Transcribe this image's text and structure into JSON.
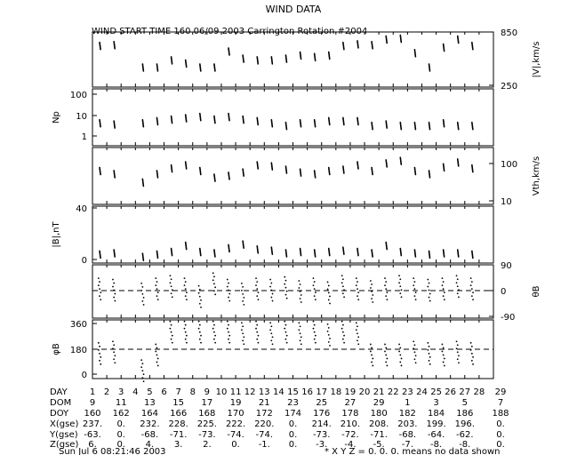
{
  "title": "WIND DATA",
  "subtitle": "WIND START TIME 160 06/09 2003 Carrington Rotation #2004",
  "footer": {
    "timestamp": "Sun Jul  6 08:21:46 2003",
    "note": "* X Y Z = 0. 0. 0. means no data shown"
  },
  "panels": [
    {
      "id": "v",
      "ylabel": "|V|,km/s",
      "side": "right",
      "ticks": [
        "850",
        "250"
      ],
      "ylim": [
        250,
        850
      ]
    },
    {
      "id": "np",
      "ylabel": "Np",
      "side": "left",
      "ticks": [
        "100",
        "10",
        "1"
      ],
      "scale": "log",
      "ylim": [
        0.5,
        120
      ]
    },
    {
      "id": "vth",
      "ylabel": "Vth,km/s",
      "side": "right",
      "ticks": [
        "100",
        "10"
      ],
      "scale": "log",
      "ylim": [
        10,
        200
      ]
    },
    {
      "id": "b",
      "ylabel": "|B|,nT",
      "side": "left",
      "ticks": [
        "40",
        "0"
      ],
      "ylim": [
        0,
        40
      ]
    },
    {
      "id": "theta",
      "ylabel": "θB",
      "side": "right",
      "ticks": [
        "90",
        "0",
        "-90"
      ],
      "ylim": [
        -90,
        90
      ]
    },
    {
      "id": "phi",
      "ylabel": "φB",
      "side": "left",
      "ticks": [
        "360",
        "180",
        "0"
      ],
      "ylim": [
        0,
        360
      ]
    }
  ],
  "table": {
    "rows": [
      {
        "label": "DAY",
        "values": [
          "1",
          "2",
          "3",
          "4",
          "5",
          "6",
          "7",
          "8",
          "9",
          "10",
          "11",
          "12",
          "13",
          "14",
          "15",
          "16",
          "17",
          "18",
          "19",
          "20",
          "21",
          "22",
          "23",
          "24",
          "25",
          "26",
          "27",
          "28",
          "29"
        ]
      },
      {
        "label": "DOM",
        "values": [
          "9",
          "11",
          "13",
          "15",
          "17",
          "19",
          "21",
          "23",
          "25",
          "27",
          "29",
          "1",
          "3",
          "5",
          "7"
        ]
      },
      {
        "label": "DOY",
        "values": [
          "160",
          "162",
          "164",
          "166",
          "168",
          "170",
          "172",
          "174",
          "176",
          "178",
          "180",
          "182",
          "184",
          "186",
          "188"
        ]
      },
      {
        "label": "X(gse)",
        "values": [
          "237.",
          "0.",
          "232.",
          "228.",
          "225.",
          "222.",
          "220.",
          "0.",
          "214.",
          "210.",
          "208.",
          "203.",
          "199.",
          "196.",
          "0."
        ]
      },
      {
        "label": "Y(gse)",
        "values": [
          "-63.",
          "0.",
          "-68.",
          "-71.",
          "-73.",
          "-74.",
          "-74.",
          "0.",
          "-73.",
          "-72.",
          "-71.",
          "-68.",
          "-64.",
          "-62.",
          "0."
        ]
      },
      {
        "label": "Z(gse)",
        "values": [
          "6.",
          "0.",
          "4.",
          "3.",
          "2.",
          "0.",
          "-1.",
          "0.",
          "-3.",
          "-4.",
          "-5.",
          "-7.",
          "-8.",
          "-8.",
          "0."
        ]
      }
    ]
  },
  "chart_data": {
    "type": "scatter",
    "x": [
      1.5,
      2.5,
      4.5,
      5.5,
      6.5,
      7.5,
      8.5,
      9.5,
      10.5,
      11.5,
      12.5,
      13.5,
      14.5,
      15.5,
      16.5,
      17.5,
      18.5,
      19.5,
      20.5,
      21.5,
      22.5,
      23.5,
      24.5,
      25.5,
      26.5,
      27.5
    ],
    "series": [
      {
        "name": "|V|",
        "values": [
          720,
          730,
          450,
          450,
          540,
          500,
          450,
          450,
          650,
          560,
          540,
          540,
          560,
          600,
          580,
          600,
          720,
          740,
          730,
          800,
          810,
          630,
          450,
          700,
          800,
          720
        ]
      },
      {
        "name": "Np",
        "values": [
          4,
          3.5,
          4,
          5,
          6,
          7,
          8,
          6,
          8,
          6,
          5,
          4,
          3,
          4,
          4,
          5,
          5,
          5,
          3,
          3.5,
          3,
          3,
          3,
          4,
          3,
          3
        ]
      },
      {
        "name": "Vth",
        "values": [
          60,
          50,
          30,
          50,
          70,
          85,
          60,
          40,
          45,
          55,
          85,
          80,
          65,
          55,
          50,
          60,
          65,
          85,
          60,
          95,
          110,
          60,
          50,
          75,
          100,
          70
        ]
      },
      {
        "name": "|B|",
        "values": [
          4,
          5,
          2,
          4,
          6,
          11,
          6,
          5,
          9,
          12,
          8,
          7,
          5,
          6,
          5,
          6,
          7,
          6,
          5,
          11,
          6,
          5,
          4,
          5,
          5,
          4
        ]
      },
      {
        "name": "θB",
        "values": [
          10,
          5,
          -10,
          10,
          20,
          10,
          -20,
          30,
          5,
          -10,
          10,
          5,
          15,
          0,
          10,
          -5,
          20,
          10,
          0,
          10,
          20,
          10,
          5,
          10,
          20,
          10
        ]
      },
      {
        "name": "φB",
        "values": [
          150,
          160,
          30,
          140,
          300,
          300,
          300,
          300,
          300,
          290,
          300,
          290,
          300,
          290,
          300,
          280,
          300,
          290,
          140,
          140,
          140,
          160,
          150,
          140,
          160,
          150
        ]
      }
    ],
    "xlim": [
      1,
      29
    ]
  }
}
